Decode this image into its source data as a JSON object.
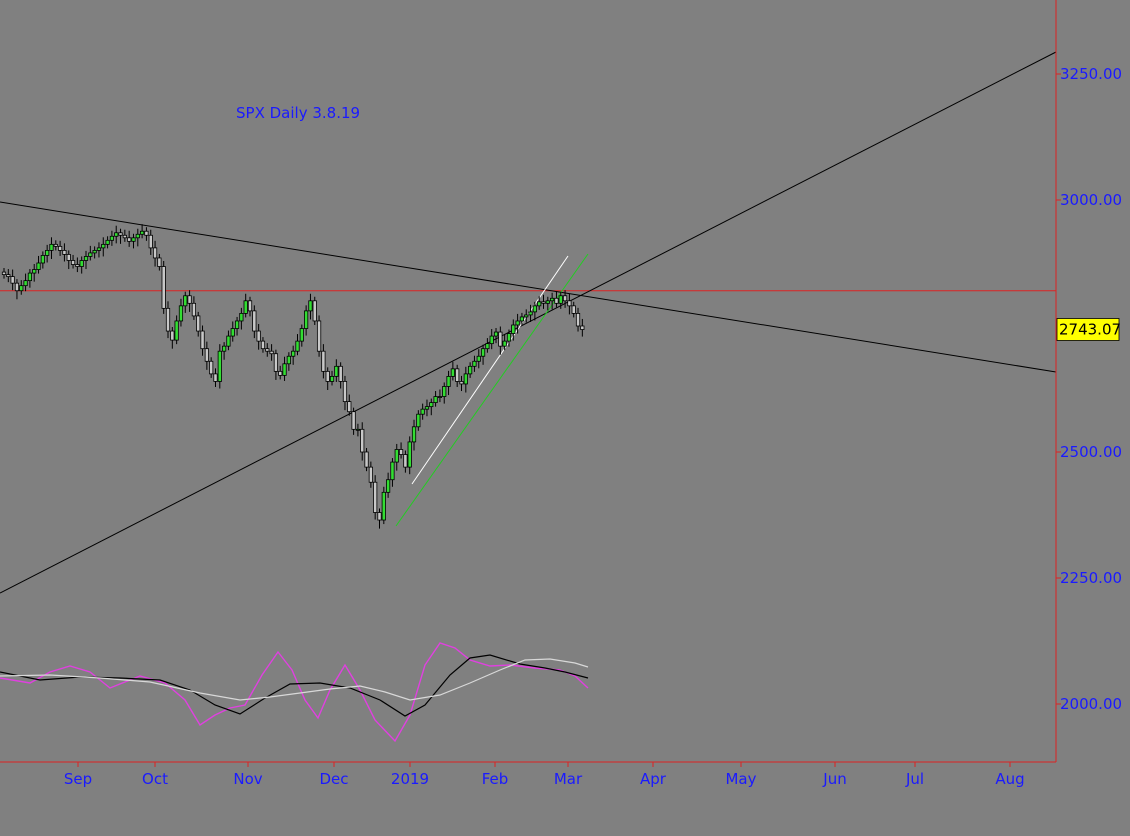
{
  "chart_data": {
    "type": "candlestick",
    "title": "SPX Daily  3.8.19",
    "last_price_label": "2743.07",
    "y_ticks": [
      "3250.00",
      "3000.00",
      "2500.00",
      "2250.00",
      "2000.00"
    ],
    "x_ticks": [
      "Sep",
      "Oct",
      "Nov",
      "Dec",
      "2019",
      "Feb",
      "Mar",
      "Apr",
      "May",
      "Jun",
      "Jul",
      "Aug"
    ],
    "ylim": [
      1890,
      3400
    ],
    "horizontal_level": 2820,
    "colors": {
      "background": "#808080",
      "up_candle": "#33dd33",
      "down_candle": "#c8c8c8",
      "axis": "#dd2222",
      "axis_labels": "#1a1aff",
      "price_box": "#ffff00",
      "trendline": "#000000",
      "white_trendline": "#ffffff",
      "green_trendline": "#22cc22",
      "oscillator_fast": "#e040e0",
      "oscillator_slow": "#000000",
      "oscillator_signal": "#d8d8d8"
    },
    "closes": [
      2852,
      2848,
      2835,
      2820,
      2830,
      2840,
      2855,
      2862,
      2875,
      2890,
      2900,
      2912,
      2908,
      2900,
      2892,
      2880,
      2872,
      2868,
      2880,
      2888,
      2895,
      2900,
      2905,
      2912,
      2920,
      2928,
      2935,
      2930,
      2925,
      2918,
      2925,
      2932,
      2938,
      2930,
      2905,
      2885,
      2868,
      2785,
      2740,
      2722,
      2760,
      2790,
      2810,
      2795,
      2770,
      2740,
      2705,
      2680,
      2655,
      2640,
      2700,
      2710,
      2730,
      2745,
      2760,
      2775,
      2800,
      2780,
      2740,
      2720,
      2705,
      2700,
      2695,
      2660,
      2652,
      2675,
      2690,
      2700,
      2720,
      2745,
      2780,
      2800,
      2760,
      2700,
      2660,
      2640,
      2650,
      2670,
      2640,
      2600,
      2580,
      2545,
      2545,
      2500,
      2470,
      2440,
      2380,
      2365,
      2420,
      2445,
      2480,
      2505,
      2495,
      2470,
      2520,
      2550,
      2575,
      2585,
      2590,
      2598,
      2610,
      2610,
      2630,
      2650,
      2665,
      2640,
      2635,
      2655,
      2670,
      2680,
      2690,
      2705,
      2715,
      2730,
      2738,
      2710,
      2720,
      2735,
      2752,
      2760,
      2768,
      2772,
      2778,
      2790,
      2798,
      2795,
      2800,
      2805,
      2795,
      2810,
      2800,
      2790,
      2775,
      2750,
      2743
    ]
  }
}
